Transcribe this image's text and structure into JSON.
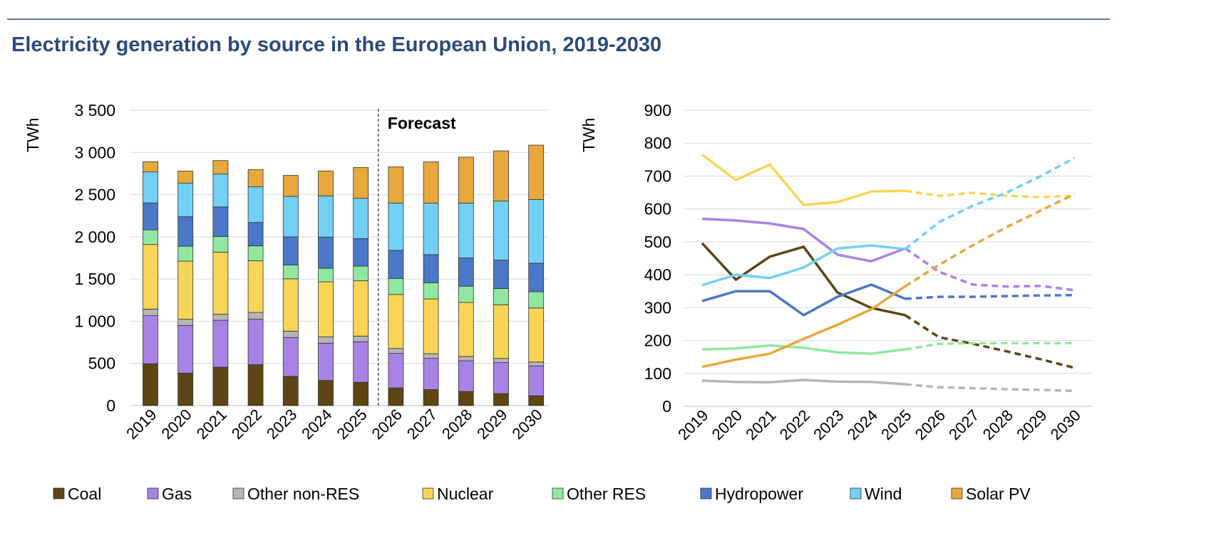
{
  "title": "Electricity generation by source in the European Union, 2019-2030",
  "colors": {
    "title": "#2c4a7c",
    "Coal": "#5e4515",
    "Gas": "#a883e6",
    "Other non-RES": "#b5b5b5",
    "Nuclear": "#f8d557",
    "Other RES": "#90e8a0",
    "Hydropower": "#4b78c8",
    "Wind": "#72d0f5",
    "Solar PV": "#e8a83c"
  },
  "legend": [
    "Coal",
    "Gas",
    "Other non-RES",
    "Nuclear",
    "Other RES",
    "Hydropower",
    "Wind",
    "Solar PV"
  ],
  "chart_data": [
    {
      "type": "bar",
      "stacked": true,
      "ylabel": "TWh",
      "ylim": [
        0,
        3500
      ],
      "yticks": [
        "0",
        "500",
        "1 000",
        "1 500",
        "2 000",
        "2 500",
        "3 000",
        "3 500"
      ],
      "grid": true,
      "annotation": "Forecast",
      "forecast_from": "2026",
      "categories": [
        "2019",
        "2020",
        "2021",
        "2022",
        "2023",
        "2024",
        "2025",
        "2026",
        "2027",
        "2028",
        "2029",
        "2030"
      ],
      "series": [
        {
          "name": "Coal",
          "values": [
            496,
            385,
            455,
            485,
            346,
            299,
            277,
            210,
            190,
            167,
            143,
            117
          ]
        },
        {
          "name": "Gas",
          "values": [
            570,
            565,
            556,
            539,
            461,
            441,
            480,
            409,
            370,
            364,
            366,
            353
          ]
        },
        {
          "name": "Other non-RES",
          "values": [
            78,
            74,
            73,
            80,
            75,
            74,
            67,
            58,
            55,
            52,
            50,
            47
          ]
        },
        {
          "name": "Nuclear",
          "values": [
            765,
            688,
            735,
            612,
            621,
            653,
            655,
            640,
            649,
            640,
            636,
            640
          ]
        },
        {
          "name": "Other RES",
          "values": [
            173,
            176,
            185,
            178,
            164,
            160,
            173,
            190,
            192,
            192,
            192,
            192
          ]
        },
        {
          "name": "Hydropower",
          "values": [
            320,
            350,
            350,
            277,
            333,
            370,
            327,
            333,
            333,
            335,
            337,
            338
          ]
        },
        {
          "name": "Wind",
          "values": [
            368,
            400,
            390,
            422,
            480,
            489,
            478,
            560,
            610,
            650,
            700,
            755
          ]
        },
        {
          "name": "Solar PV",
          "values": [
            120,
            142,
            160,
            205,
            248,
            295,
            365,
            430,
            490,
            545,
            595,
            645
          ]
        }
      ]
    },
    {
      "type": "line",
      "ylabel": "TWh",
      "ylim": [
        0,
        900
      ],
      "yticks": [
        "0",
        "100",
        "200",
        "300",
        "400",
        "500",
        "600",
        "700",
        "800",
        "900"
      ],
      "grid": true,
      "dashed_from": "2025",
      "categories": [
        "2019",
        "2020",
        "2021",
        "2022",
        "2023",
        "2024",
        "2025",
        "2026",
        "2027",
        "2028",
        "2029",
        "2030"
      ],
      "series_ref": "same as bar chart series"
    }
  ]
}
